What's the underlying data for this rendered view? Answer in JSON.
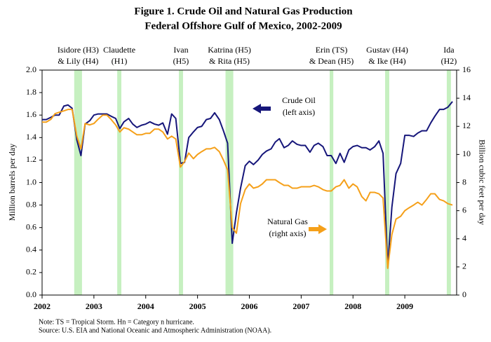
{
  "chart_data": {
    "type": "line",
    "title": [
      "Figure 1.  Crude Oil and Natural Gas Production",
      "Federal Offshore Gulf of Mexico, 2002-2009"
    ],
    "y_label": "Million barrels per day",
    "y2_label": "Billion cubic feet per day",
    "notes": [
      "Note: TS = Tropical Storm.  Hn = Category n hurricane.",
      "Source:  U.S. EIA and National Oceanic and Atmospheric Administration (NOAA)."
    ],
    "x": [
      2002,
      2002.08,
      2002.17,
      2002.25,
      2002.33,
      2002.42,
      2002.5,
      2002.58,
      2002.67,
      2002.75,
      2002.83,
      2002.92,
      2003,
      2003.08,
      2003.17,
      2003.25,
      2003.33,
      2003.42,
      2003.5,
      2003.58,
      2003.67,
      2003.75,
      2003.83,
      2003.92,
      2004,
      2004.08,
      2004.17,
      2004.25,
      2004.33,
      2004.42,
      2004.5,
      2004.58,
      2004.67,
      2004.75,
      2004.83,
      2004.92,
      2005,
      2005.08,
      2005.17,
      2005.25,
      2005.33,
      2005.42,
      2005.5,
      2005.58,
      2005.67,
      2005.75,
      2005.83,
      2005.92,
      2006,
      2006.08,
      2006.17,
      2006.25,
      2006.33,
      2006.42,
      2006.5,
      2006.58,
      2006.67,
      2006.75,
      2006.83,
      2006.92,
      2007,
      2007.08,
      2007.17,
      2007.25,
      2007.33,
      2007.42,
      2007.5,
      2007.58,
      2007.67,
      2007.75,
      2007.83,
      2007.92,
      2008,
      2008.08,
      2008.17,
      2008.25,
      2008.33,
      2008.42,
      2008.5,
      2008.58,
      2008.67,
      2008.75,
      2008.83,
      2008.92,
      2009,
      2009.08,
      2009.17,
      2009.25,
      2009.33,
      2009.42,
      2009.5,
      2009.58,
      2009.67,
      2009.75,
      2009.83,
      2009.92
    ],
    "series": [
      {
        "name": "Crude Oil",
        "note": "(left axis)",
        "color": "#16167a",
        "axis": "y",
        "values": [
          1.56,
          1.56,
          1.58,
          1.6,
          1.6,
          1.68,
          1.69,
          1.66,
          1.38,
          1.24,
          1.52,
          1.55,
          1.6,
          1.61,
          1.61,
          1.61,
          1.59,
          1.57,
          1.48,
          1.54,
          1.57,
          1.52,
          1.49,
          1.51,
          1.52,
          1.54,
          1.52,
          1.51,
          1.53,
          1.43,
          1.61,
          1.57,
          1.17,
          1.18,
          1.4,
          1.45,
          1.49,
          1.5,
          1.56,
          1.57,
          1.62,
          1.56,
          1.46,
          1.35,
          0.46,
          0.73,
          0.95,
          1.15,
          1.19,
          1.16,
          1.2,
          1.25,
          1.28,
          1.3,
          1.36,
          1.39,
          1.31,
          1.33,
          1.37,
          1.34,
          1.33,
          1.33,
          1.27,
          1.33,
          1.35,
          1.32,
          1.24,
          1.24,
          1.17,
          1.26,
          1.18,
          1.29,
          1.32,
          1.33,
          1.31,
          1.31,
          1.29,
          1.32,
          1.37,
          1.26,
          0.25,
          0.78,
          1.08,
          1.17,
          1.42,
          1.42,
          1.41,
          1.44,
          1.46,
          1.46,
          1.53,
          1.59,
          1.65,
          1.65,
          1.67,
          1.72
        ]
      },
      {
        "name": "Natural Gas",
        "note": "(right axis)",
        "color": "#f5a01a",
        "axis": "y2",
        "values": [
          12.3,
          12.3,
          12.5,
          12.9,
          13.0,
          13.1,
          13.2,
          13.2,
          11.3,
          10.4,
          12.2,
          12.1,
          12.2,
          12.5,
          12.8,
          12.8,
          12.5,
          12.1,
          11.6,
          11.9,
          11.8,
          11.6,
          11.4,
          11.4,
          11.5,
          11.5,
          11.8,
          11.8,
          11.6,
          11.1,
          11.3,
          11.1,
          9.1,
          9.5,
          10.1,
          9.7,
          10.0,
          10.2,
          10.4,
          10.4,
          10.5,
          10.2,
          9.6,
          8.9,
          4.8,
          4.4,
          6.5,
          7.5,
          7.9,
          7.6,
          7.7,
          7.9,
          8.2,
          8.2,
          8.2,
          8.0,
          7.8,
          7.8,
          7.6,
          7.6,
          7.7,
          7.7,
          7.7,
          7.8,
          7.7,
          7.5,
          7.4,
          7.4,
          7.7,
          7.8,
          8.2,
          7.6,
          7.9,
          7.7,
          7.0,
          6.7,
          7.3,
          7.3,
          7.2,
          6.9,
          1.9,
          4.3,
          5.4,
          5.6,
          6.0,
          6.2,
          6.4,
          6.6,
          6.4,
          6.8,
          7.2,
          7.2,
          6.8,
          6.7,
          6.5,
          6.4
        ]
      }
    ],
    "xlim": [
      2002,
      2010
    ],
    "xticks": [
      2002,
      2003,
      2004,
      2005,
      2006,
      2007,
      2008,
      2009
    ],
    "ylim": [
      0,
      2
    ],
    "yticks": [
      {
        "value": 0,
        "label": "0.0"
      },
      0.2,
      0.4,
      0.6,
      0.8,
      {
        "value": 1,
        "label": "1.0"
      },
      1.2,
      1.4,
      1.6,
      1.8,
      {
        "value": 2,
        "label": "2.0"
      }
    ],
    "y2lim": [
      0,
      16
    ],
    "y2ticks": [
      0,
      2,
      4,
      6,
      8,
      10,
      12,
      14,
      16
    ],
    "band_color": "#c6f0c0",
    "hurricanes": [
      {
        "lines": [
          "Isidore (H3)",
          "& Lily (H4)"
        ],
        "x0": 2002.62,
        "x1": 2002.77
      },
      {
        "lines": [
          "Claudette",
          "(H1)"
        ],
        "x0": 2003.45,
        "x1": 2003.53
      },
      {
        "lines": [
          "Ivan",
          "(H5)"
        ],
        "x0": 2004.64,
        "x1": 2004.72
      },
      {
        "lines": [
          "Katrina (H5)",
          "& Rita (H5)"
        ],
        "x0": 2005.54,
        "x1": 2005.69
      },
      {
        "lines": [
          "Erin (TS)",
          "& Dean (H5)"
        ],
        "x0": 2007.55,
        "x1": 2007.62
      },
      {
        "lines": [
          "Gustav (H4)",
          "& Ike (H4)"
        ],
        "x0": 2008.62,
        "x1": 2008.7
      },
      {
        "lines": [
          "Ida",
          "(H2)"
        ],
        "x0": 2009.81,
        "x1": 2009.89
      }
    ]
  }
}
